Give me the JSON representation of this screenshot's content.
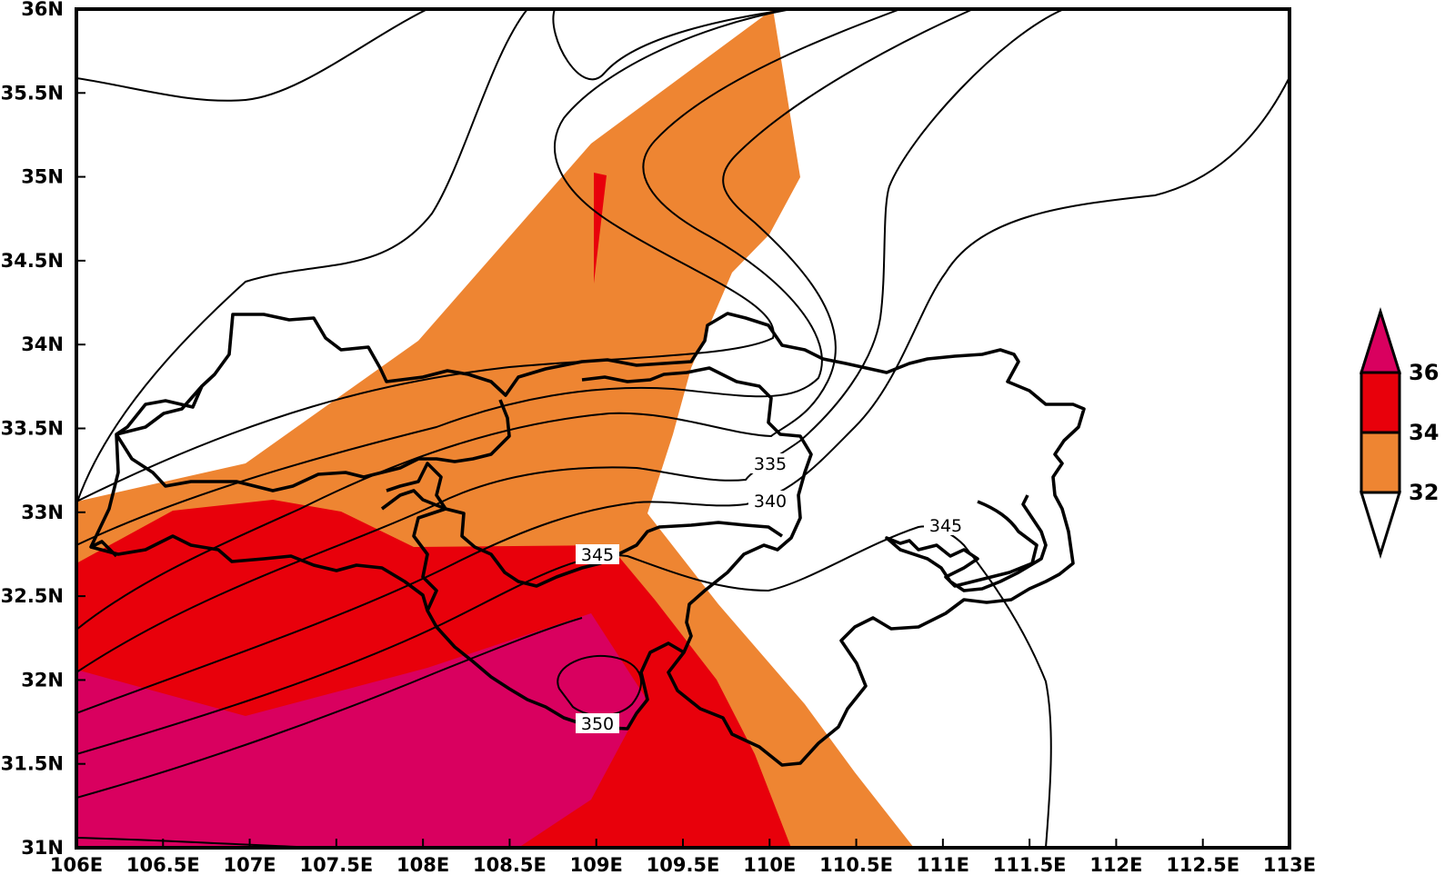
{
  "map": {
    "x_ticks": [
      "106E",
      "106.5E",
      "107E",
      "107.5E",
      "108E",
      "108.5E",
      "109E",
      "109.5E",
      "110E",
      "110.5E",
      "111E",
      "111.5E",
      "112E",
      "112.5E",
      "113E"
    ],
    "y_ticks": [
      "31N",
      "31.5N",
      "32N",
      "32.5N",
      "33N",
      "33.5N",
      "34N",
      "34.5N",
      "35N",
      "35.5N",
      "36N"
    ],
    "lon_range": [
      106,
      113
    ],
    "lat_range": [
      31,
      36
    ],
    "contour_labels": [
      "335",
      "340",
      "345",
      "345",
      "350"
    ]
  },
  "legend": {
    "labels": [
      "36",
      "34",
      "32"
    ],
    "colors": {
      "above_36": "#d9005f",
      "34_to_36": "#e8000b",
      "32_to_34": "#ee8532",
      "below_32": "#ffffff"
    }
  }
}
